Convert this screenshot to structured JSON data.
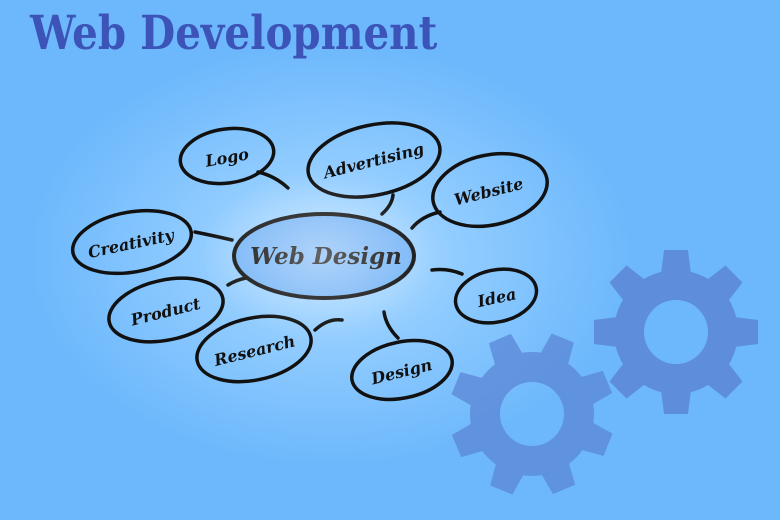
{
  "title": "Web Development",
  "center": {
    "label": "Web Design"
  },
  "bubbles": [
    {
      "id": "logo",
      "label": "Logo"
    },
    {
      "id": "advertising",
      "label": "Advertising"
    },
    {
      "id": "website",
      "label": "Website"
    },
    {
      "id": "creativity",
      "label": "Creativity"
    },
    {
      "id": "idea",
      "label": "Idea"
    },
    {
      "id": "product",
      "label": "Product"
    },
    {
      "id": "research",
      "label": "Research"
    },
    {
      "id": "design",
      "label": "Design"
    }
  ],
  "colors": {
    "title": "#3c54b8",
    "gear": "#5b86d6",
    "outline": "#111111"
  },
  "icons": [
    "gear-icon",
    "gear-icon"
  ]
}
